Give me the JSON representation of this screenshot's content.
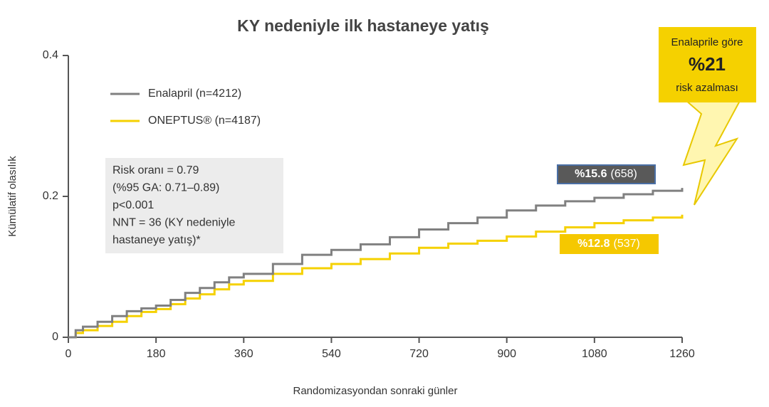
{
  "chart_data": {
    "type": "line",
    "drawstyle": "steps-post",
    "title": "KY nedeniyle ilk hastaneye yatış",
    "xlabel": "Randomizasyondan  sonraki günler",
    "ylabel": "Kümülatif olasılık",
    "x": [
      0,
      15,
      30,
      60,
      90,
      120,
      150,
      180,
      210,
      240,
      270,
      300,
      330,
      360,
      420,
      480,
      540,
      600,
      660,
      720,
      780,
      840,
      900,
      960,
      1020,
      1080,
      1140,
      1200,
      1260
    ],
    "series": [
      {
        "name": "Enalapril (n=4212)",
        "color": "#808080",
        "values": [
          0,
          0.01,
          0.015,
          0.022,
          0.03,
          0.037,
          0.041,
          0.045,
          0.053,
          0.063,
          0.07,
          0.078,
          0.085,
          0.09,
          0.104,
          0.117,
          0.124,
          0.132,
          0.142,
          0.153,
          0.162,
          0.17,
          0.18,
          0.187,
          0.193,
          0.198,
          0.203,
          0.208,
          0.212
        ]
      },
      {
        "name": "ONEPTUS® (n=4187)",
        "color": "#f5d100",
        "values": [
          0,
          0.006,
          0.01,
          0.016,
          0.022,
          0.03,
          0.036,
          0.04,
          0.047,
          0.055,
          0.061,
          0.068,
          0.075,
          0.08,
          0.09,
          0.098,
          0.104,
          0.111,
          0.119,
          0.127,
          0.133,
          0.137,
          0.143,
          0.15,
          0.156,
          0.162,
          0.166,
          0.17,
          0.174
        ]
      }
    ],
    "xlim": [
      0,
      1260
    ],
    "xticks": [
      0,
      180,
      360,
      540,
      720,
      900,
      1080,
      1260
    ],
    "ylim": [
      0,
      0.4
    ],
    "yticks": [
      0,
      0.2,
      0.4
    ],
    "stats_box": [
      "Risk oranı = 0.79",
      "(%95 GA: 0.71–0.89)",
      "p<0.001",
      "NNT = 36 (KY nedeniyle",
      "hastaneye yatış)*"
    ],
    "end_labels": [
      {
        "strong": "%15.6",
        "detail": "(658)"
      },
      {
        "strong": "%12.8",
        "detail": "(537)"
      }
    ],
    "callout": [
      "Enalaprile göre",
      "%21",
      "risk azalması"
    ]
  }
}
